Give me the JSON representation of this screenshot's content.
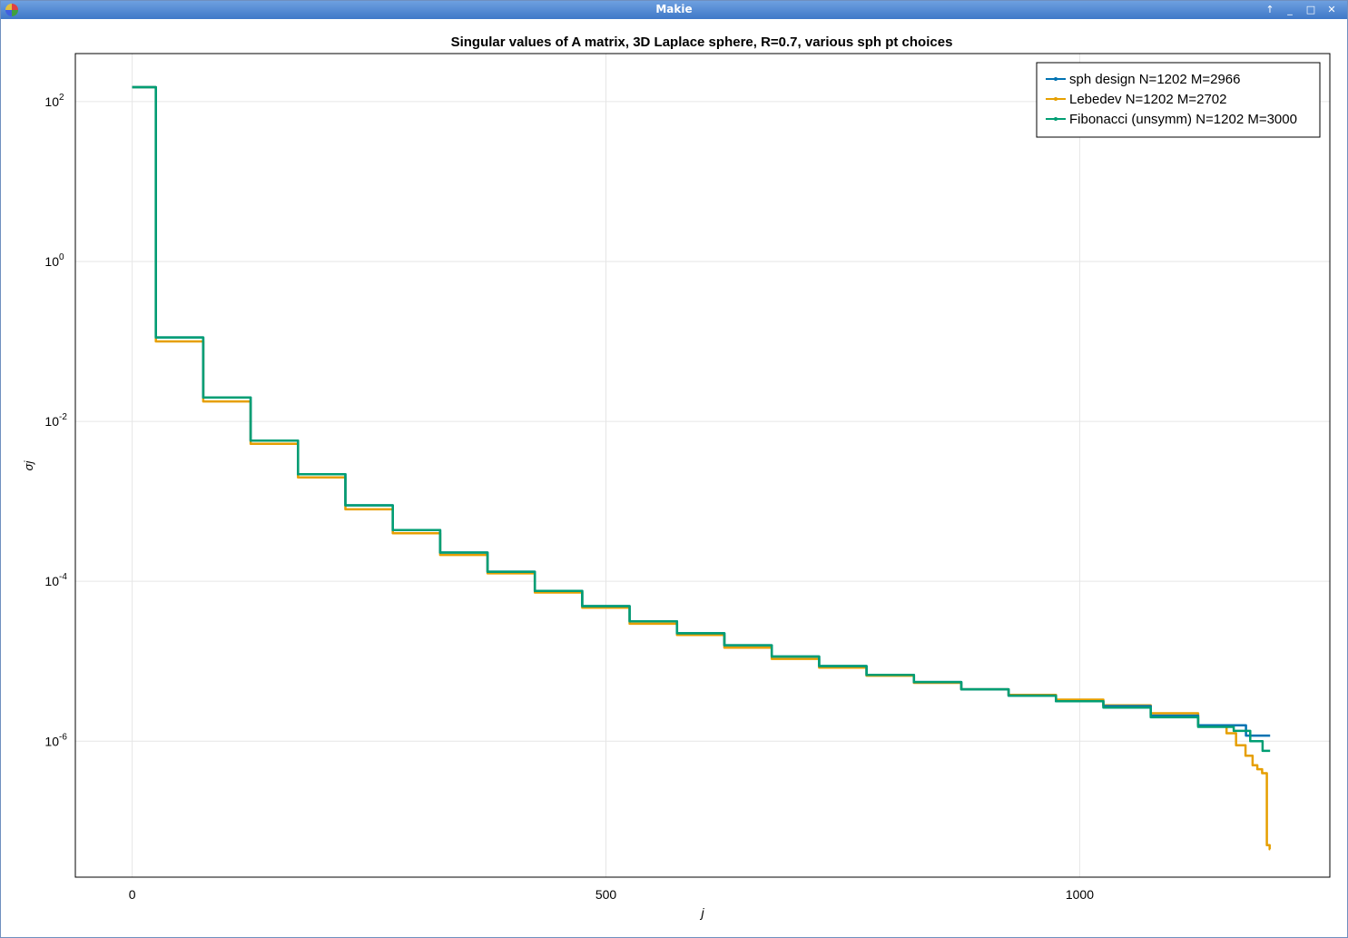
{
  "window": {
    "title": "Makie"
  },
  "chart_data": {
    "type": "line",
    "title": "Singular values of A matrix, 3D Laplace sphere, R=0.7, various sph pt choices",
    "xlabel": "j",
    "ylabel": "σj",
    "xlim": [
      -60,
      1264
    ],
    "ylim": [
      -7.7,
      2.6
    ],
    "yscale": "log10",
    "xticks": [
      0,
      500,
      1000
    ],
    "xtick_labels": [
      "0",
      "500",
      "1000"
    ],
    "yticks": [
      2,
      0,
      -2,
      -4,
      -6
    ],
    "ytick_labels": [
      "10",
      "10",
      "10",
      "10",
      "10"
    ],
    "ytick_exponents": [
      "2",
      "0",
      "-2",
      "-4",
      "-6"
    ],
    "grid": true,
    "legend_position": "top-right",
    "series": [
      {
        "name": "sph design N=1202 M=2966",
        "color": "#0072b2",
        "x": [
          0,
          50,
          100,
          150,
          200,
          250,
          300,
          350,
          400,
          450,
          500,
          550,
          600,
          650,
          700,
          750,
          800,
          850,
          900,
          950,
          1000,
          1050,
          1100,
          1150,
          1201
        ],
        "log10_y": [
          2.18,
          -0.95,
          -1.7,
          -2.24,
          -2.66,
          -3.05,
          -3.36,
          -3.64,
          -3.88,
          -4.12,
          -4.31,
          -4.5,
          -4.65,
          -4.8,
          -4.94,
          -5.06,
          -5.17,
          -5.26,
          -5.35,
          -5.43,
          -5.5,
          -5.56,
          -5.68,
          -5.8,
          -5.93
        ]
      },
      {
        "name": "Lebedev N=1202 M=2702",
        "color": "#e69f00",
        "x": [
          0,
          50,
          100,
          150,
          200,
          250,
          300,
          350,
          400,
          450,
          500,
          550,
          600,
          650,
          700,
          750,
          800,
          850,
          900,
          950,
          1000,
          1050,
          1100,
          1150,
          1160,
          1170,
          1180,
          1185,
          1190,
          1195,
          1200,
          1201
        ],
        "log10_y": [
          2.18,
          -1.0,
          -1.75,
          -2.28,
          -2.7,
          -3.1,
          -3.4,
          -3.67,
          -3.9,
          -4.14,
          -4.33,
          -4.53,
          -4.67,
          -4.83,
          -4.97,
          -5.08,
          -5.18,
          -5.27,
          -5.35,
          -5.42,
          -5.48,
          -5.55,
          -5.65,
          -5.8,
          -5.9,
          -6.05,
          -6.18,
          -6.3,
          -6.35,
          -6.4,
          -7.3,
          -7.35
        ]
      },
      {
        "name": "Fibonacci (unsymm) N=1202 M=3000",
        "color": "#009e73",
        "x": [
          0,
          50,
          100,
          150,
          200,
          250,
          300,
          350,
          400,
          450,
          500,
          550,
          600,
          650,
          700,
          750,
          800,
          850,
          900,
          950,
          1000,
          1050,
          1100,
          1150,
          1175,
          1185,
          1201
        ],
        "log10_y": [
          2.18,
          -0.95,
          -1.7,
          -2.24,
          -2.66,
          -3.05,
          -3.36,
          -3.64,
          -3.88,
          -4.12,
          -4.31,
          -4.5,
          -4.65,
          -4.8,
          -4.94,
          -5.06,
          -5.17,
          -5.26,
          -5.35,
          -5.43,
          -5.5,
          -5.58,
          -5.7,
          -5.82,
          -5.87,
          -6.0,
          -6.12
        ]
      }
    ]
  }
}
